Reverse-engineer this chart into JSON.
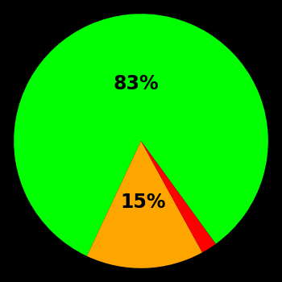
{
  "slices": [
    83,
    15,
    2
  ],
  "colors": [
    "#00ff00",
    "#ffa500",
    "#ff0000"
  ],
  "labels": [
    "83%",
    "15%",
    ""
  ],
  "background_color": "#000000",
  "startangle": -54,
  "figsize": [
    3.5,
    3.5
  ],
  "dpi": 100,
  "label_fontsize": 17,
  "label_fontweight": "bold",
  "label_color": "#000000"
}
